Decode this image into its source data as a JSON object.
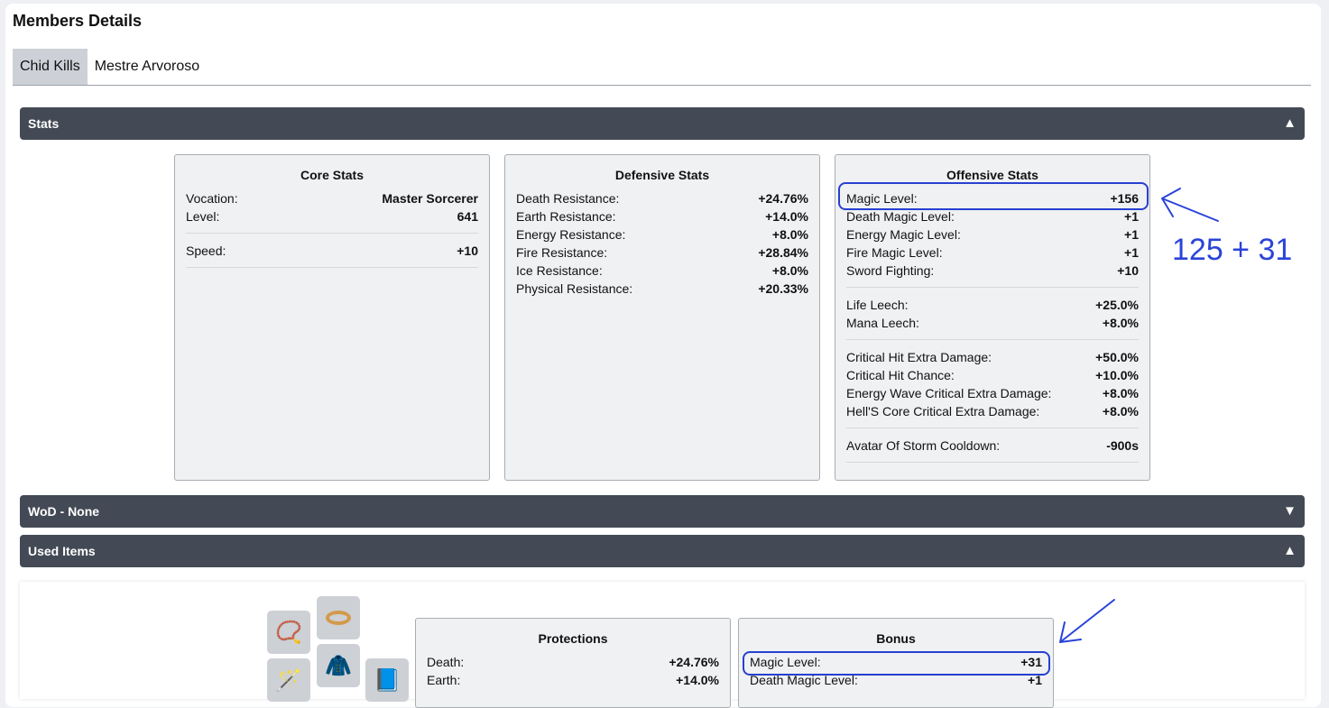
{
  "title": "Members Details",
  "tabs": [
    {
      "label": "Chid Kills",
      "active": true
    },
    {
      "label": "Mestre Arvoroso",
      "active": false
    }
  ],
  "sections": {
    "stats": "Stats",
    "wod": "WoD - None",
    "used_items": "Used Items"
  },
  "core": {
    "title": "Core Stats",
    "rows": [
      [
        "Vocation:",
        "Master Sorcerer"
      ],
      [
        "Level:",
        "641"
      ],
      [
        "Speed:",
        "+10"
      ]
    ]
  },
  "defensive": {
    "title": "Defensive Stats",
    "rows": [
      [
        "Death Resistance:",
        "+24.76%"
      ],
      [
        "Earth Resistance:",
        "+14.0%"
      ],
      [
        "Energy Resistance:",
        "+8.0%"
      ],
      [
        "Fire Resistance:",
        "+28.84%"
      ],
      [
        "Ice Resistance:",
        "+8.0%"
      ],
      [
        "Physical Resistance:",
        "+20.33%"
      ]
    ]
  },
  "offensive": {
    "title": "Offensive Stats",
    "rows": [
      [
        "Magic Level:",
        "+156"
      ],
      [
        "Death Magic Level:",
        "+1"
      ],
      [
        "Energy Magic Level:",
        "+1"
      ],
      [
        "Fire Magic Level:",
        "+1"
      ],
      [
        "Sword Fighting:",
        "+10"
      ],
      [
        "Life Leech:",
        "+25.0%"
      ],
      [
        "Mana Leech:",
        "+8.0%"
      ],
      [
        "Critical Hit Extra Damage:",
        "+50.0%"
      ],
      [
        "Critical Hit Chance:",
        "+10.0%"
      ],
      [
        "Energy Wave Critical Extra Damage:",
        "+8.0%"
      ],
      [
        "Hell'S Core Critical Extra Damage:",
        "+8.0%"
      ],
      [
        "Avatar Of Storm Cooldown:",
        "-900s"
      ]
    ]
  },
  "protections": {
    "title": "Protections",
    "rows": [
      [
        "Death:",
        "+24.76%"
      ],
      [
        "Earth:",
        "+14.0%"
      ]
    ]
  },
  "bonus": {
    "title": "Bonus",
    "rows": [
      [
        "Magic Level:",
        "+31"
      ],
      [
        "Death Magic Level:",
        "+1"
      ]
    ]
  },
  "items": [
    "amulet-icon",
    "ring-icon",
    "armor-icon",
    "wand-icon",
    "spellbook-icon"
  ],
  "annotation": {
    "text": "125 + 31",
    "color": "#2a44d8"
  }
}
